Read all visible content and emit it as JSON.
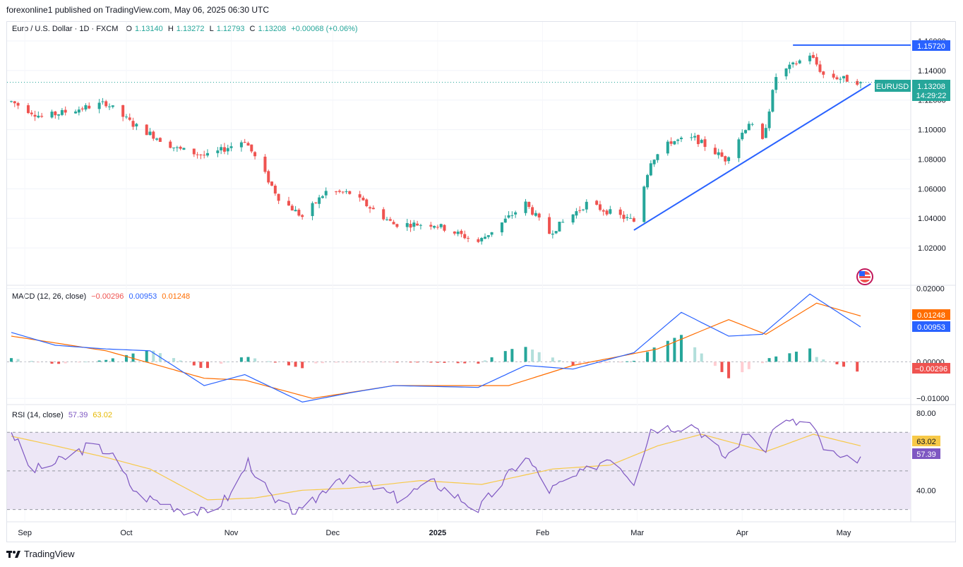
{
  "header": {
    "published": "forexonline1 published on TradingView.com, May 06, 2025 06:30 UTC"
  },
  "legend": {
    "symbol": "Euro / U.S. Dollar · 1D · FXCM",
    "o_label": "O",
    "o": "1.13140",
    "h_label": "H",
    "h": "1.13272",
    "l_label": "L",
    "l": "1.12793",
    "c_label": "C",
    "c": "1.13208",
    "change": "+0.00068 (+0.06%)"
  },
  "price_axis": {
    "ticks": [
      "1.16000",
      "1.14000",
      "1.12000",
      "1.10000",
      "1.08000",
      "1.06000",
      "1.04000",
      "1.02000"
    ]
  },
  "price_tags": {
    "resistance": "1.15720",
    "symbol": "EURUSD",
    "last": "1.13208",
    "countdown": "14:29:22"
  },
  "macd": {
    "title": "MACD (12, 26, close)",
    "hist_val": "−0.00296",
    "macd_val": "0.00953",
    "signal_val": "0.01248",
    "axis_ticks": [
      "0.02000",
      "0.00000",
      "−0.01000"
    ],
    "tags": {
      "signal": "0.01248",
      "macd": "0.00953",
      "hist": "−0.00296"
    }
  },
  "rsi": {
    "title": "RSI (14, close)",
    "rsi_val": "57.39",
    "ma_val": "63.02",
    "axis_ticks": [
      "80.00",
      "40.00"
    ],
    "tags": {
      "ma": "63.02",
      "rsi": "57.39"
    }
  },
  "time_axis": {
    "labels": [
      "Sep",
      "Oct",
      "Nov",
      "Dec",
      "2025",
      "Feb",
      "Mar",
      "Apr",
      "May"
    ]
  },
  "footer": {
    "brand": "TradingView"
  },
  "colors": {
    "up": "#26a69a",
    "down": "#ef5350",
    "trend": "#2962ff",
    "macd": "#2962ff",
    "signal": "#ff6d00",
    "rsi": "#7e57c2",
    "rsi_ma": "#f7c948",
    "rsi_band": "#ede7f6"
  },
  "chart_data": {
    "type": "candlestick",
    "title": "Euro / U.S. Dollar · 1D · FXCM",
    "period": "1D",
    "x_range": [
      "2024-08-28",
      "2025-05-06"
    ],
    "close_series": [
      {
        "date": "2024-08-28",
        "close": 1.119
      },
      {
        "date": "2024-09-06",
        "close": 1.1085
      },
      {
        "date": "2024-09-25",
        "close": 1.118
      },
      {
        "date": "2024-10-03",
        "close": 1.1035
      },
      {
        "date": "2024-10-16",
        "close": 1.087
      },
      {
        "date": "2024-10-25",
        "close": 1.082
      },
      {
        "date": "2024-10-31",
        "close": 1.088
      },
      {
        "date": "2024-11-05",
        "close": 1.093
      },
      {
        "date": "2024-11-15",
        "close": 1.054
      },
      {
        "date": "2024-11-22",
        "close": 1.041
      },
      {
        "date": "2024-11-29",
        "close": 1.058
      },
      {
        "date": "2024-12-06",
        "close": 1.057
      },
      {
        "date": "2024-12-19",
        "close": 1.036
      },
      {
        "date": "2024-12-31",
        "close": 1.036
      },
      {
        "date": "2025-01-13",
        "close": 1.024
      },
      {
        "date": "2025-01-27",
        "close": 1.05
      },
      {
        "date": "2025-02-03",
        "close": 1.03
      },
      {
        "date": "2025-02-14",
        "close": 1.05
      },
      {
        "date": "2025-02-28",
        "close": 1.038
      },
      {
        "date": "2025-03-05",
        "close": 1.079
      },
      {
        "date": "2025-03-11",
        "close": 1.092
      },
      {
        "date": "2025-03-18",
        "close": 1.094
      },
      {
        "date": "2025-03-27",
        "close": 1.08
      },
      {
        "date": "2025-04-03",
        "close": 1.105
      },
      {
        "date": "2025-04-07",
        "close": 1.092
      },
      {
        "date": "2025-04-11",
        "close": 1.136
      },
      {
        "date": "2025-04-21",
        "close": 1.151
      },
      {
        "date": "2025-04-25",
        "close": 1.137
      },
      {
        "date": "2025-05-06",
        "close": 1.1321
      }
    ],
    "annotations": [
      {
        "type": "horizontal_line",
        "value": 1.1572,
        "from": "2025-04-16",
        "label": "1.15720"
      },
      {
        "type": "trend_line",
        "from": {
          "date": "2025-02-28",
          "value": 1.032
        },
        "to": {
          "date": "2025-05-09",
          "value": 1.131
        }
      }
    ],
    "last_price": 1.13208,
    "y_range": [
      1.01,
      1.16
    ],
    "macd": {
      "params": "12, 26, close",
      "last": {
        "histogram": -0.00296,
        "macd": 0.00953,
        "signal": 0.01248
      },
      "y_range": [
        -0.0115,
        0.0205
      ],
      "macd_series": [
        {
          "date": "2024-08-28",
          "value": 0.008
        },
        {
          "date": "2024-09-10",
          "value": 0.0045
        },
        {
          "date": "2024-09-25",
          "value": 0.0035
        },
        {
          "date": "2024-10-08",
          "value": 0.003
        },
        {
          "date": "2024-10-24",
          "value": -0.0065
        },
        {
          "date": "2024-11-05",
          "value": -0.0035
        },
        {
          "date": "2024-11-22",
          "value": -0.011
        },
        {
          "date": "2024-12-06",
          "value": -0.0085
        },
        {
          "date": "2024-12-19",
          "value": -0.0065
        },
        {
          "date": "2025-01-13",
          "value": -0.007
        },
        {
          "date": "2025-01-27",
          "value": -0.001
        },
        {
          "date": "2025-02-10",
          "value": -0.002
        },
        {
          "date": "2025-02-28",
          "value": 0.0025
        },
        {
          "date": "2025-03-14",
          "value": 0.0135
        },
        {
          "date": "2025-03-28",
          "value": 0.007
        },
        {
          "date": "2025-04-07",
          "value": 0.0075
        },
        {
          "date": "2025-04-21",
          "value": 0.0185
        },
        {
          "date": "2025-05-06",
          "value": 0.0095
        }
      ],
      "signal_series": [
        {
          "date": "2024-08-28",
          "value": 0.007
        },
        {
          "date": "2024-09-25",
          "value": 0.003
        },
        {
          "date": "2024-10-24",
          "value": -0.0045
        },
        {
          "date": "2024-11-05",
          "value": -0.005
        },
        {
          "date": "2024-11-25",
          "value": -0.01
        },
        {
          "date": "2024-12-19",
          "value": -0.0065
        },
        {
          "date": "2025-01-22",
          "value": -0.0065
        },
        {
          "date": "2025-02-10",
          "value": -0.001
        },
        {
          "date": "2025-03-07",
          "value": 0.0035
        },
        {
          "date": "2025-03-28",
          "value": 0.0115
        },
        {
          "date": "2025-04-08",
          "value": 0.0075
        },
        {
          "date": "2025-04-23",
          "value": 0.016
        },
        {
          "date": "2025-05-06",
          "value": 0.0125
        }
      ]
    },
    "rsi": {
      "params": "14, close",
      "last": {
        "rsi": 57.39,
        "ma": 63.02
      },
      "y_range": [
        24,
        84
      ],
      "bands": [
        70,
        30
      ],
      "rsi_series": [
        {
          "date": "2024-08-28",
          "value": 71
        },
        {
          "date": "2024-09-03",
          "value": 50
        },
        {
          "date": "2024-09-10",
          "value": 54
        },
        {
          "date": "2024-09-20",
          "value": 63
        },
        {
          "date": "2024-09-26",
          "value": 60
        },
        {
          "date": "2024-10-04",
          "value": 38
        },
        {
          "date": "2024-10-18",
          "value": 30
        },
        {
          "date": "2024-10-25",
          "value": 28
        },
        {
          "date": "2024-11-01",
          "value": 38
        },
        {
          "date": "2024-11-06",
          "value": 55
        },
        {
          "date": "2024-11-14",
          "value": 33
        },
        {
          "date": "2024-11-22",
          "value": 28
        },
        {
          "date": "2024-12-02",
          "value": 47
        },
        {
          "date": "2024-12-13",
          "value": 42
        },
        {
          "date": "2024-12-20",
          "value": 36
        },
        {
          "date": "2024-12-31",
          "value": 44
        },
        {
          "date": "2025-01-13",
          "value": 30
        },
        {
          "date": "2025-01-27",
          "value": 58
        },
        {
          "date": "2025-02-03",
          "value": 40
        },
        {
          "date": "2025-02-14",
          "value": 50
        },
        {
          "date": "2025-02-21",
          "value": 58
        },
        {
          "date": "2025-02-28",
          "value": 45
        },
        {
          "date": "2025-03-05",
          "value": 72
        },
        {
          "date": "2025-03-18",
          "value": 74
        },
        {
          "date": "2025-03-27",
          "value": 57
        },
        {
          "date": "2025-04-03",
          "value": 71
        },
        {
          "date": "2025-04-07",
          "value": 58
        },
        {
          "date": "2025-04-11",
          "value": 75
        },
        {
          "date": "2025-04-21",
          "value": 75
        },
        {
          "date": "2025-04-25",
          "value": 62
        },
        {
          "date": "2025-05-01",
          "value": 55
        },
        {
          "date": "2025-05-06",
          "value": 57.4
        }
      ],
      "ma_series": [
        {
          "date": "2024-08-28",
          "value": 68
        },
        {
          "date": "2024-09-10",
          "value": 63
        },
        {
          "date": "2024-09-25",
          "value": 57
        },
        {
          "date": "2024-10-08",
          "value": 51
        },
        {
          "date": "2024-10-25",
          "value": 35
        },
        {
          "date": "2024-11-08",
          "value": 36
        },
        {
          "date": "2024-11-22",
          "value": 40
        },
        {
          "date": "2024-12-06",
          "value": 41
        },
        {
          "date": "2024-12-27",
          "value": 45
        },
        {
          "date": "2025-01-14",
          "value": 43
        },
        {
          "date": "2025-02-04",
          "value": 51
        },
        {
          "date": "2025-02-21",
          "value": 53
        },
        {
          "date": "2025-03-07",
          "value": 63
        },
        {
          "date": "2025-03-20",
          "value": 69
        },
        {
          "date": "2025-04-08",
          "value": 60
        },
        {
          "date": "2025-04-22",
          "value": 69
        },
        {
          "date": "2025-05-06",
          "value": 63
        }
      ]
    }
  }
}
